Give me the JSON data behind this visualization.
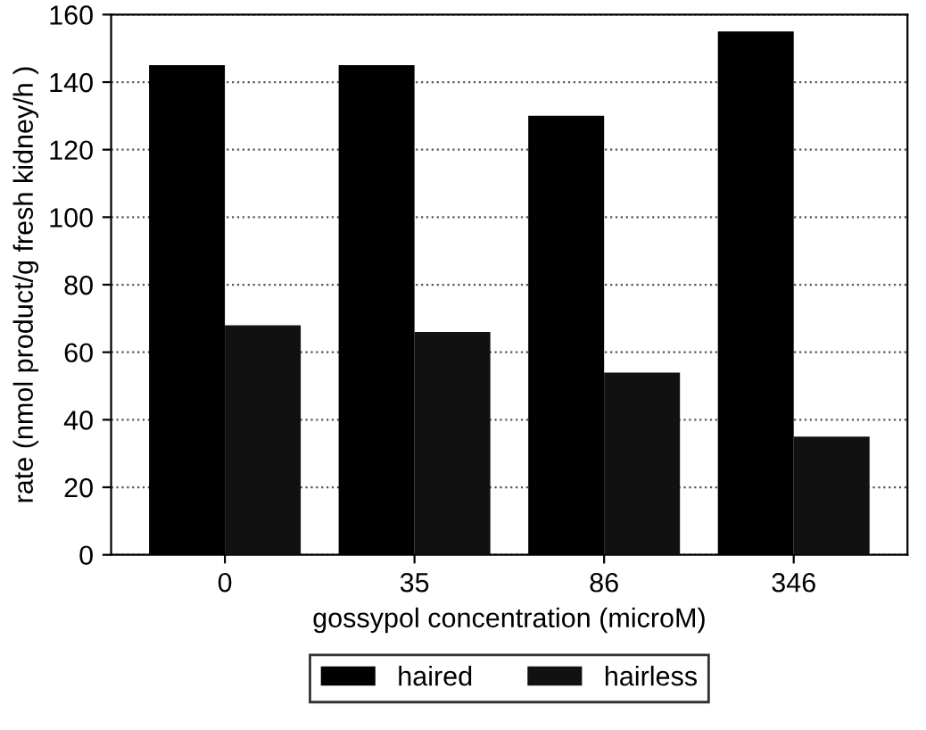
{
  "chart_data": {
    "type": "bar",
    "xlabel": "gossypol concentration (microM)",
    "ylabel": "rate (nmol product/g fresh kidney/h )",
    "categories": [
      "0",
      "35",
      "86",
      "346"
    ],
    "series": [
      {
        "name": "haired",
        "color": "#000000",
        "values": [
          145,
          145,
          130,
          155
        ]
      },
      {
        "name": "hairless",
        "color": "#111111",
        "values": [
          68,
          66,
          54,
          35
        ]
      }
    ],
    "ylim": [
      0,
      160
    ],
    "yticks": [
      0,
      20,
      40,
      60,
      80,
      100,
      120,
      140,
      160
    ],
    "grid": "y",
    "legend": "bottom"
  }
}
